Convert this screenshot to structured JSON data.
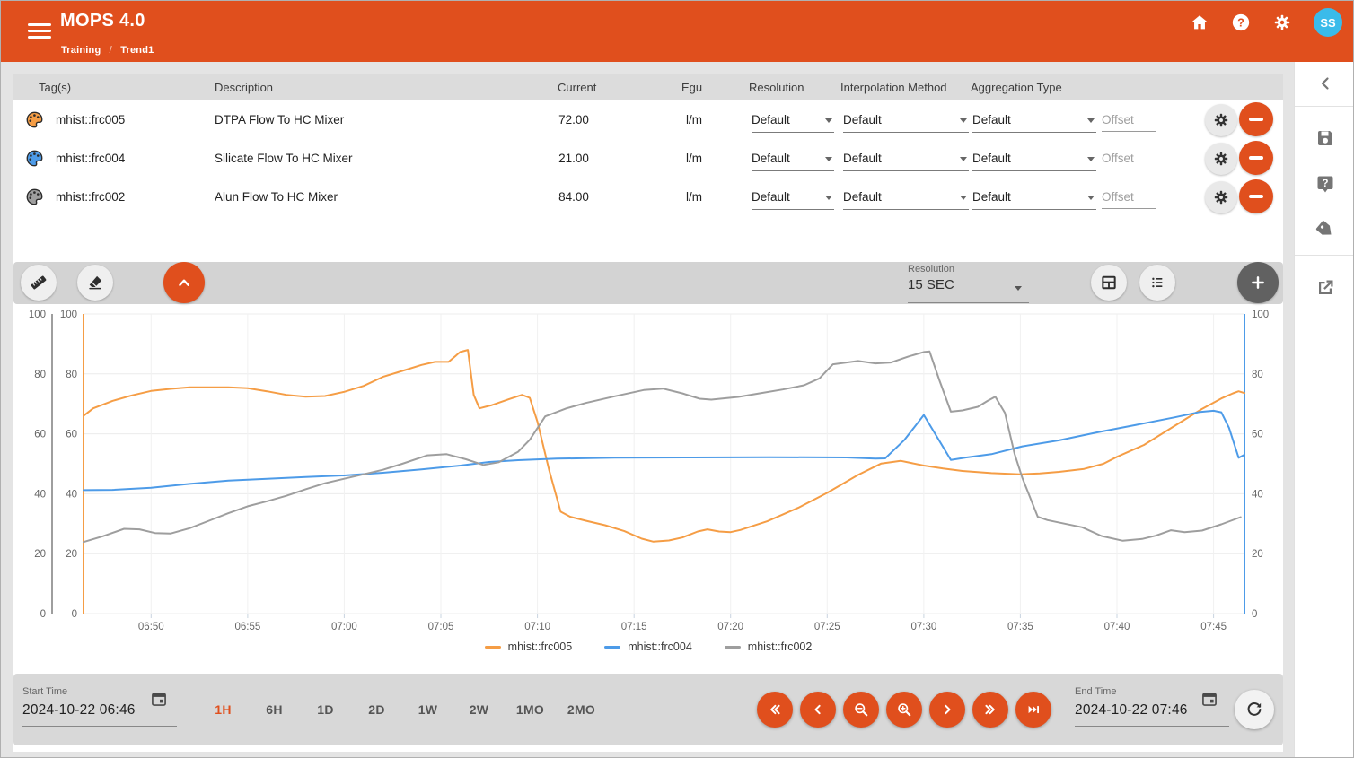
{
  "header": {
    "title": "MOPS 4.0",
    "breadcrumb": [
      "Training",
      "Trend1"
    ],
    "avatar": "SS"
  },
  "colors": {
    "primary_orange": "#E04F1D",
    "avatar_blue": "#3ABBEA",
    "series_orange": "#F59D45",
    "series_blue": "#4D9BE8",
    "series_gray": "#9E9E9E"
  },
  "table": {
    "columns": [
      "Tag(s)",
      "Description",
      "Current",
      "Egu",
      "Resolution",
      "Interpolation Method",
      "Aggregation Type"
    ],
    "offset_placeholder": "Offset",
    "rows": [
      {
        "tag": "mhist::frc005",
        "description": "DTPA Flow To HC Mixer",
        "current": "72.00",
        "egu": "l/m",
        "resolution": "Default",
        "interpolation": "Default",
        "aggregation": "Default",
        "color": "#F59D45"
      },
      {
        "tag": "mhist::frc004",
        "description": "Silicate Flow To HC Mixer",
        "current": "21.00",
        "egu": "l/m",
        "resolution": "Default",
        "interpolation": "Default",
        "aggregation": "Default",
        "color": "#4D9BE8"
      },
      {
        "tag": "mhist::frc002",
        "description": "Alun Flow To HC Mixer",
        "current": "84.00",
        "egu": "l/m",
        "resolution": "Default",
        "interpolation": "Default",
        "aggregation": "Default",
        "color": "#9E9E9E"
      }
    ]
  },
  "toolbar": {
    "resolution_label": "Resolution",
    "resolution_value": "15 SEC",
    "icons": [
      "ruler",
      "eraser",
      "collapse-up",
      "table-view",
      "list-view",
      "add"
    ]
  },
  "chart_data": {
    "type": "line",
    "title": "",
    "xlabel": "",
    "ylabel": "",
    "ylim": [
      0,
      100
    ],
    "y_tick_values": [
      0,
      20,
      40,
      60,
      80,
      100
    ],
    "grid": true,
    "legend_position": "bottom",
    "x_axis": {
      "start_label": "06:46",
      "end_label": "07:46",
      "ticks_minutes_from_start": [
        4,
        9,
        14,
        19,
        24,
        29,
        34,
        39,
        44,
        49,
        54,
        59
      ],
      "tick_labels": [
        "06:50",
        "06:55",
        "07:00",
        "07:05",
        "07:10",
        "07:15",
        "07:20",
        "07:25",
        "07:30",
        "07:35",
        "07:40",
        "07:45"
      ]
    },
    "y_axes": [
      {
        "side": "left",
        "color": "#9E9E9E",
        "range": [
          0,
          100
        ],
        "for_series": "mhist::frc002"
      },
      {
        "side": "left",
        "color": "#F59D45",
        "range": [
          0,
          100
        ],
        "for_series": "mhist::frc005"
      },
      {
        "side": "right",
        "color": "#4D9BE8",
        "range": [
          0,
          100
        ],
        "for_series": "mhist::frc004"
      }
    ],
    "series": [
      {
        "name": "mhist::frc005",
        "color": "#F59D45",
        "points": [
          [
            0.5,
            66
          ],
          [
            1,
            68.5
          ],
          [
            2,
            71
          ],
          [
            3,
            72.8
          ],
          [
            4,
            74.3
          ],
          [
            5,
            75
          ],
          [
            6,
            75.5
          ],
          [
            8,
            75.5
          ],
          [
            9,
            75.2
          ],
          [
            10,
            74.2
          ],
          [
            11,
            73
          ],
          [
            12,
            72.4
          ],
          [
            13,
            72.6
          ],
          [
            14,
            74
          ],
          [
            15,
            76
          ],
          [
            16,
            79
          ],
          [
            17,
            81
          ],
          [
            18,
            83
          ],
          [
            18.7,
            84
          ],
          [
            19.4,
            84
          ],
          [
            20,
            87.3
          ],
          [
            20.4,
            88
          ],
          [
            20.7,
            73
          ],
          [
            21,
            68.5
          ],
          [
            21.6,
            69.5
          ],
          [
            22.5,
            71.5
          ],
          [
            23.2,
            73
          ],
          [
            23.6,
            72
          ],
          [
            24,
            64
          ],
          [
            24.6,
            48
          ],
          [
            25.2,
            34
          ],
          [
            25.7,
            32.3
          ],
          [
            26.5,
            31
          ],
          [
            27.5,
            29.5
          ],
          [
            28.5,
            27.5
          ],
          [
            29.4,
            25
          ],
          [
            30,
            24
          ],
          [
            30.8,
            24.4
          ],
          [
            31.5,
            25.4
          ],
          [
            32.3,
            27.4
          ],
          [
            32.8,
            28.1
          ],
          [
            33.4,
            27.4
          ],
          [
            34,
            27.2
          ],
          [
            34.5,
            27.9
          ],
          [
            35.9,
            30.8
          ],
          [
            37.5,
            35.3
          ],
          [
            39,
            40.3
          ],
          [
            40.6,
            46.3
          ],
          [
            41.8,
            50.1
          ],
          [
            42.8,
            51
          ],
          [
            44,
            49.4
          ],
          [
            45,
            48.4
          ],
          [
            46,
            47.6
          ],
          [
            47.5,
            46.9
          ],
          [
            49,
            46.5
          ],
          [
            50,
            46.8
          ],
          [
            51,
            47.3
          ],
          [
            52.3,
            48.3
          ],
          [
            53.3,
            50
          ],
          [
            54,
            52.3
          ],
          [
            55.4,
            56.3
          ],
          [
            56.9,
            62.3
          ],
          [
            58.4,
            68.3
          ],
          [
            59.4,
            71.8
          ],
          [
            60,
            73.5
          ],
          [
            60.3,
            74.2
          ],
          [
            60.6,
            73.6
          ]
        ]
      },
      {
        "name": "mhist::frc004",
        "color": "#4D9BE8",
        "points": [
          [
            0.5,
            41.2
          ],
          [
            2,
            41.3
          ],
          [
            4,
            42
          ],
          [
            6,
            43.3
          ],
          [
            8,
            44.4
          ],
          [
            10,
            45
          ],
          [
            12,
            45.6
          ],
          [
            14,
            46.1
          ],
          [
            16,
            47
          ],
          [
            18,
            48.1
          ],
          [
            20,
            49.4
          ],
          [
            21.5,
            50.6
          ],
          [
            23,
            51.2
          ],
          [
            25,
            51.7
          ],
          [
            28,
            52
          ],
          [
            32,
            52.1
          ],
          [
            36,
            52.2
          ],
          [
            40,
            52.1
          ],
          [
            41.5,
            51.7
          ],
          [
            42,
            51.8
          ],
          [
            43,
            58
          ],
          [
            44,
            66.3
          ],
          [
            45.4,
            51.3
          ],
          [
            46.2,
            52.1
          ],
          [
            47.5,
            53.2
          ],
          [
            49.1,
            55.8
          ],
          [
            51,
            57.8
          ],
          [
            53,
            60.5
          ],
          [
            55,
            63
          ],
          [
            57,
            65.5
          ],
          [
            58.3,
            67.3
          ],
          [
            59,
            67.7
          ],
          [
            59.4,
            67.2
          ],
          [
            59.8,
            62
          ],
          [
            60.3,
            52
          ],
          [
            60.6,
            53
          ]
        ]
      },
      {
        "name": "mhist::frc002",
        "color": "#9E9E9E",
        "points": [
          [
            0.5,
            23.9
          ],
          [
            1.5,
            25.8
          ],
          [
            2.6,
            28.3
          ],
          [
            3.4,
            28.1
          ],
          [
            4.2,
            26.9
          ],
          [
            5,
            26.7
          ],
          [
            6,
            28.5
          ],
          [
            7,
            31
          ],
          [
            8,
            33.5
          ],
          [
            9,
            35.8
          ],
          [
            10,
            37.5
          ],
          [
            11,
            39.3
          ],
          [
            12,
            41.5
          ],
          [
            13,
            43.5
          ],
          [
            14,
            45
          ],
          [
            15,
            46.5
          ],
          [
            16,
            48
          ],
          [
            17,
            50
          ],
          [
            18.3,
            52.8
          ],
          [
            19.3,
            53.2
          ],
          [
            20.3,
            51.5
          ],
          [
            21.2,
            49.6
          ],
          [
            22,
            50.5
          ],
          [
            23,
            54
          ],
          [
            23.6,
            58
          ],
          [
            24.4,
            65.8
          ],
          [
            25.5,
            68.5
          ],
          [
            26.5,
            70.3
          ],
          [
            28,
            72.5
          ],
          [
            29.5,
            74.6
          ],
          [
            30.5,
            75.1
          ],
          [
            31.5,
            73.5
          ],
          [
            32.4,
            71.7
          ],
          [
            33,
            71.4
          ],
          [
            34.4,
            72.3
          ],
          [
            35.5,
            73.5
          ],
          [
            36.7,
            74.8
          ],
          [
            37.8,
            76.2
          ],
          [
            38.6,
            78.5
          ],
          [
            39.3,
            83.2
          ],
          [
            40.6,
            84.3
          ],
          [
            41.5,
            83.5
          ],
          [
            42.3,
            83.8
          ],
          [
            43.2,
            85.8
          ],
          [
            44,
            87.3
          ],
          [
            44.3,
            87.5
          ],
          [
            44.8,
            78
          ],
          [
            45.4,
            67.4
          ],
          [
            46,
            67.8
          ],
          [
            46.8,
            69
          ],
          [
            47.3,
            71
          ],
          [
            47.7,
            72.4
          ],
          [
            48.2,
            67
          ],
          [
            48.7,
            53.3
          ],
          [
            49.1,
            45.3
          ],
          [
            49.9,
            32.3
          ],
          [
            50.4,
            31.2
          ],
          [
            51.3,
            30
          ],
          [
            52.2,
            28.8
          ],
          [
            53.2,
            25.9
          ],
          [
            54.3,
            24.3
          ],
          [
            55.3,
            24.9
          ],
          [
            56,
            26
          ],
          [
            56.8,
            27.8
          ],
          [
            57.5,
            27.2
          ],
          [
            58.4,
            27.7
          ],
          [
            59.4,
            29.8
          ],
          [
            60.4,
            32.2
          ]
        ]
      }
    ]
  },
  "footer": {
    "start_time": {
      "label": "Start Time",
      "value": "2024-10-22 06:46"
    },
    "end_time": {
      "label": "End Time",
      "value": "2024-10-22 07:46"
    },
    "ranges": [
      "1H",
      "6H",
      "1D",
      "2D",
      "1W",
      "2W",
      "1MO",
      "2MO"
    ],
    "active_range": "1H",
    "nav_icons": [
      "fast-backward",
      "step-backward",
      "zoom-out",
      "zoom-in",
      "step-forward",
      "fast-forward",
      "skip-to-latest",
      "refresh"
    ]
  },
  "sidebar": {
    "icons": [
      "collapse-panel",
      "save",
      "help",
      "tags",
      "open-external"
    ]
  }
}
